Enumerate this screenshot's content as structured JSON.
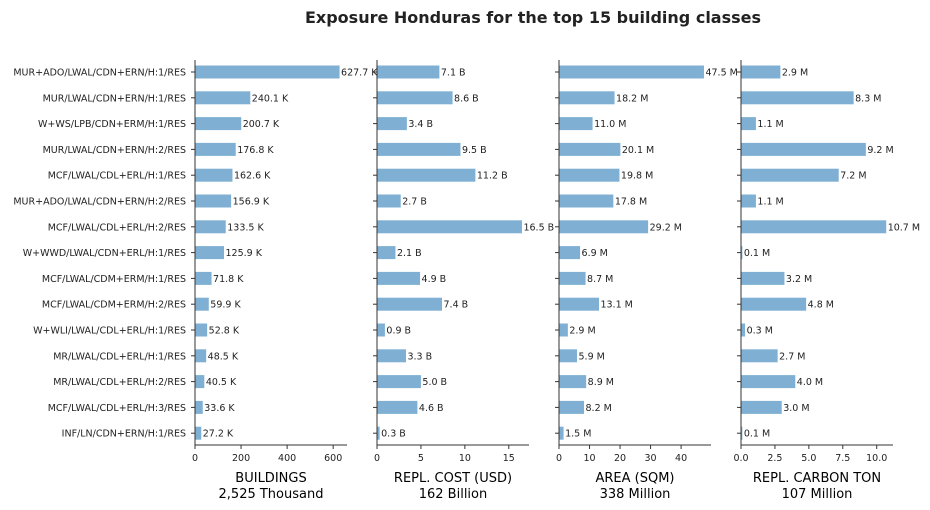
{
  "title": "Exposure Honduras for the top 15 building classes",
  "colors": {
    "bar": "#7fb0d3",
    "axis": "#333333",
    "text": "#222222"
  },
  "chart_data": [
    {
      "type": "bar",
      "orientation": "horizontal",
      "categories": [
        "MUR+ADO/LWAL/CDN+ERN/H:1/RES",
        "MUR/LWAL/CDN+ERN/H:1/RES",
        "W+WS/LPB/CDN+ERM/H:1/RES",
        "MUR/LWAL/CDN+ERN/H:2/RES",
        "MCF/LWAL/CDL+ERL/H:1/RES",
        "MUR+ADO/LWAL/CDN+ERN/H:2/RES",
        "MCF/LWAL/CDL+ERL/H:2/RES",
        "W+WWD/LWAL/CDN+ERL/H:1/RES",
        "MCF/LWAL/CDM+ERM/H:1/RES",
        "MCF/LWAL/CDM+ERM/H:2/RES",
        "W+WLI/LWAL/CDL+ERL/H:1/RES",
        "MR/LWAL/CDL+ERL/H:1/RES",
        "MR/LWAL/CDL+ERL/H:2/RES",
        "MCF/LWAL/CDL+ERL/H:3/RES",
        "INF/LN/CDN+ERN/H:1/RES"
      ],
      "values": [
        627.7,
        240.1,
        200.7,
        176.8,
        162.6,
        156.9,
        133.5,
        125.9,
        71.8,
        59.9,
        52.8,
        48.5,
        40.5,
        33.6,
        27.2
      ],
      "value_labels": [
        "627.7 K",
        "240.1 K",
        "200.7 K",
        "176.8 K",
        "162.6 K",
        "156.9 K",
        "133.5 K",
        "125.9 K",
        "71.8 K",
        "59.9 K",
        "52.8 K",
        "48.5 K",
        "40.5 K",
        "33.6 K",
        "27.2 K"
      ],
      "xlabel": "BUILDINGS",
      "xlabel_sub": "2,525 Thousand",
      "xlim": [
        0,
        660
      ],
      "xticks": [
        0,
        200,
        400,
        600
      ],
      "xtick_labels": [
        "0",
        "200",
        "400",
        "600"
      ],
      "grid": false
    },
    {
      "type": "bar",
      "orientation": "horizontal",
      "values": [
        7.1,
        8.6,
        3.4,
        9.5,
        11.2,
        2.7,
        16.5,
        2.1,
        4.9,
        7.4,
        0.9,
        3.3,
        5.0,
        4.6,
        0.3
      ],
      "value_labels": [
        "7.1 B",
        "8.6 B",
        "3.4 B",
        "9.5 B",
        "11.2 B",
        "2.7 B",
        "16.5 B",
        "2.1 B",
        "4.9 B",
        "7.4 B",
        "0.9 B",
        "3.3 B",
        "5.0 B",
        "4.6 B",
        "0.3 B"
      ],
      "xlabel": "REPL. COST (USD)",
      "xlabel_sub": "162 Billion",
      "xlim": [
        0,
        17.3
      ],
      "xticks": [
        0,
        5,
        10,
        15
      ],
      "xtick_labels": [
        "0",
        "5",
        "10",
        "15"
      ],
      "grid": false
    },
    {
      "type": "bar",
      "orientation": "horizontal",
      "values": [
        47.5,
        18.2,
        11.0,
        20.1,
        19.8,
        17.8,
        29.2,
        6.9,
        8.7,
        13.1,
        2.9,
        5.9,
        8.9,
        8.2,
        1.5
      ],
      "value_labels": [
        "47.5 M",
        "18.2 M",
        "11.0 M",
        "20.1 M",
        "19.8 M",
        "17.8 M",
        "29.2 M",
        "6.9 M",
        "8.7 M",
        "13.1 M",
        "2.9 M",
        "5.9 M",
        "8.9 M",
        "8.2 M",
        "1.5 M"
      ],
      "xlabel": "AREA (SQM)",
      "xlabel_sub": "338 Million",
      "xlim": [
        0,
        49.8
      ],
      "xticks": [
        0,
        10,
        20,
        30,
        40
      ],
      "xtick_labels": [
        "0",
        "10",
        "20",
        "30",
        "40"
      ],
      "grid": false
    },
    {
      "type": "bar",
      "orientation": "horizontal",
      "values": [
        2.9,
        8.3,
        1.1,
        9.2,
        7.2,
        1.1,
        10.7,
        0.1,
        3.2,
        4.8,
        0.3,
        2.7,
        4.0,
        3.0,
        0.1
      ],
      "value_labels": [
        "2.9 M",
        "8.3 M",
        "1.1 M",
        "9.2 M",
        "7.2 M",
        "1.1 M",
        "10.7 M",
        "0.1 M",
        "3.2 M",
        "4.8 M",
        "0.3 M",
        "2.7 M",
        "4.0 M",
        "3.0 M",
        "0.1 M"
      ],
      "xlabel": "REPL. CARBON TON",
      "xlabel_sub": "107 Million",
      "xlim": [
        0,
        11.2
      ],
      "xticks": [
        0,
        2.5,
        5,
        7.5,
        10
      ],
      "xtick_labels": [
        "0.0",
        "2.5",
        "5.0",
        "7.5",
        "10.0"
      ],
      "grid": false
    }
  ]
}
